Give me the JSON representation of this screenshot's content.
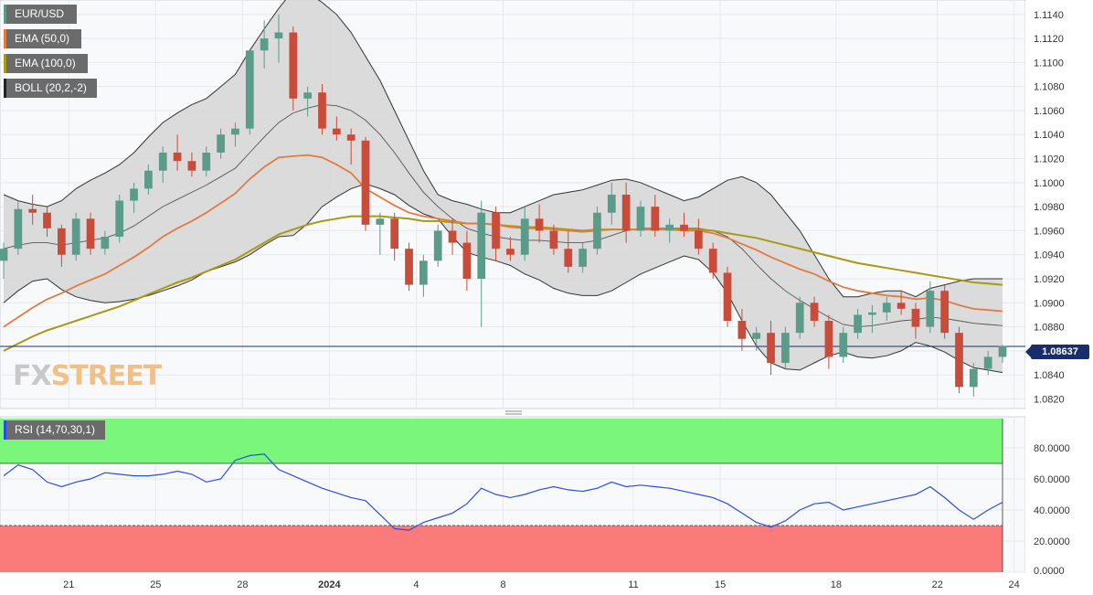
{
  "legend": {
    "symbol": "EUR/USD",
    "ema50": "EMA (50,0)",
    "ema100": "EMA (100,0)",
    "boll": "BOLL (20,2,-2)",
    "rsi": "RSI (14,70,30,1)"
  },
  "colors": {
    "up": "#5b9b8a",
    "down": "#c94b3a",
    "ema50": "#e47a3d",
    "ema100": "#a99a13",
    "boll": "#333333",
    "bollFill": "#d6d6d6",
    "rsiLine": "#2a4fe0",
    "overbought": "#7af77a",
    "oversold": "#fb7b7b",
    "priceLine": "#1a2d6b"
  },
  "watermark": {
    "part1": "FX",
    "part2": "STREET"
  },
  "current_price": "1.08637",
  "chart_data": {
    "type": "candlestick",
    "x_ticks": [
      "21",
      "25",
      "28",
      "2024",
      "4",
      "8",
      "11",
      "15",
      "18",
      "22",
      "24"
    ],
    "y_ticks": [
      "1.1140",
      "1.1120",
      "1.1100",
      "1.1080",
      "1.1060",
      "1.1040",
      "1.1020",
      "1.1000",
      "1.0980",
      "1.0960",
      "1.0940",
      "1.0920",
      "1.0900",
      "1.0880",
      "1.0860",
      "1.0840",
      "1.0820"
    ],
    "ylim": [
      1.0812,
      1.1152
    ],
    "ohlc": [
      [
        1.0935,
        1.095,
        1.092,
        1.0945
      ],
      [
        1.0945,
        1.0985,
        1.094,
        1.0978
      ],
      [
        1.0978,
        1.099,
        1.0965,
        1.0975
      ],
      [
        1.0975,
        1.098,
        1.0955,
        1.0962
      ],
      [
        1.0962,
        1.0965,
        1.093,
        1.094
      ],
      [
        1.094,
        1.0975,
        1.0935,
        1.097
      ],
      [
        1.097,
        1.0975,
        1.094,
        1.0945
      ],
      [
        1.0945,
        1.096,
        1.094,
        1.0955
      ],
      [
        1.0955,
        1.099,
        1.095,
        1.0985
      ],
      [
        1.0985,
        1.1,
        1.0975,
        1.0995
      ],
      [
        1.0995,
        1.1015,
        1.099,
        1.101
      ],
      [
        1.101,
        1.103,
        1.1,
        1.1025
      ],
      [
        1.1025,
        1.104,
        1.101,
        1.1018
      ],
      [
        1.1018,
        1.1025,
        1.1005,
        1.101
      ],
      [
        1.101,
        1.103,
        1.1005,
        1.1025
      ],
      [
        1.1025,
        1.1045,
        1.102,
        1.104
      ],
      [
        1.104,
        1.105,
        1.103,
        1.1045
      ],
      [
        1.1045,
        1.111,
        1.104,
        1.111
      ],
      [
        1.111,
        1.1135,
        1.1095,
        1.112
      ],
      [
        1.112,
        1.114,
        1.11,
        1.1125
      ],
      [
        1.1125,
        1.113,
        1.106,
        1.107
      ],
      [
        1.107,
        1.108,
        1.1055,
        1.1075
      ],
      [
        1.1075,
        1.1082,
        1.104,
        1.1045
      ],
      [
        1.1045,
        1.1055,
        1.1035,
        1.104
      ],
      [
        1.104,
        1.1045,
        1.1015,
        1.1035
      ],
      [
        1.1035,
        1.1038,
        1.096,
        1.0965
      ],
      [
        1.0965,
        1.0975,
        1.094,
        1.097
      ],
      [
        1.097,
        1.0975,
        1.0935,
        1.0945
      ],
      [
        1.0945,
        1.095,
        1.091,
        1.0915
      ],
      [
        1.0915,
        1.094,
        1.0905,
        1.0935
      ],
      [
        1.0935,
        1.0965,
        1.093,
        1.096
      ],
      [
        1.096,
        1.097,
        1.094,
        1.095
      ],
      [
        1.095,
        1.096,
        1.091,
        1.092
      ],
      [
        1.092,
        1.0985,
        1.088,
        1.0975
      ],
      [
        1.0975,
        1.098,
        1.0935,
        1.0945
      ],
      [
        1.0945,
        1.0955,
        1.0935,
        1.094
      ],
      [
        1.094,
        1.098,
        1.0935,
        1.097
      ],
      [
        1.097,
        1.0982,
        1.095,
        1.096
      ],
      [
        1.096,
        1.0965,
        1.094,
        1.0945
      ],
      [
        1.0945,
        1.096,
        1.0925,
        1.093
      ],
      [
        1.093,
        1.095,
        1.0925,
        1.0945
      ],
      [
        1.0945,
        1.098,
        1.094,
        1.0975
      ],
      [
        1.0975,
        1.1,
        1.0965,
        1.099
      ],
      [
        1.099,
        1.1,
        1.095,
        1.096
      ],
      [
        1.096,
        1.0985,
        1.0955,
        1.098
      ],
      [
        1.098,
        1.099,
        1.0955,
        1.096
      ],
      [
        1.096,
        1.097,
        1.095,
        1.0965
      ],
      [
        1.0965,
        1.0975,
        1.0955,
        1.096
      ],
      [
        1.096,
        1.097,
        1.094,
        1.0945
      ],
      [
        1.0945,
        1.095,
        1.092,
        1.0925
      ],
      [
        1.0925,
        1.093,
        1.088,
        1.0885
      ],
      [
        1.0885,
        1.0895,
        1.086,
        1.087
      ],
      [
        1.087,
        1.088,
        1.086,
        1.0875
      ],
      [
        1.0875,
        1.0885,
        1.084,
        1.085
      ],
      [
        1.085,
        1.088,
        1.0845,
        1.0875
      ],
      [
        1.0875,
        1.0905,
        1.087,
        1.09
      ],
      [
        1.09,
        1.0905,
        1.088,
        1.0885
      ],
      [
        1.0885,
        1.089,
        1.0845,
        1.0855
      ],
      [
        1.0855,
        1.088,
        1.085,
        1.0875
      ],
      [
        1.0875,
        1.0895,
        1.087,
        1.089
      ],
      [
        1.089,
        1.0898,
        1.0875,
        1.0892
      ],
      [
        1.0892,
        1.0905,
        1.0885,
        1.09
      ],
      [
        1.09,
        1.091,
        1.089,
        1.0895
      ],
      [
        1.0895,
        1.09,
        1.087,
        1.088
      ],
      [
        1.088,
        1.0918,
        1.0875,
        1.091
      ],
      [
        1.091,
        1.0915,
        1.087,
        1.0875
      ],
      [
        1.0875,
        1.088,
        1.0825,
        1.083
      ],
      [
        1.083,
        1.085,
        1.0822,
        1.0845
      ],
      [
        1.0845,
        1.086,
        1.084,
        1.0855
      ],
      [
        1.0855,
        1.0865,
        1.085,
        1.0864
      ]
    ],
    "ema50": [
      1.088,
      1.0888,
      1.0896,
      1.0903,
      1.0908,
      1.0914,
      1.0919,
      1.0924,
      1.0931,
      1.0938,
      1.0946,
      1.0955,
      1.0962,
      1.0968,
      1.0975,
      1.0983,
      1.0991,
      1.1003,
      1.1013,
      1.1021,
      1.1022,
      1.1023,
      1.1021,
      1.1015,
      1.1008,
      1.0995,
      1.0988,
      1.0981,
      1.0975,
      1.0972,
      1.097,
      1.0968,
      1.0966,
      1.0966,
      1.0965,
      1.0963,
      1.0962,
      1.0962,
      1.0961,
      1.096,
      1.0959,
      1.096,
      1.0961,
      1.0961,
      1.0961,
      1.0961,
      1.0961,
      1.096,
      1.096,
      1.0958,
      1.0954,
      1.0949,
      1.0944,
      1.0938,
      1.0933,
      1.0928,
      1.0924,
      1.0918,
      1.0913,
      1.091,
      1.0908,
      1.0906,
      1.0905,
      1.0903,
      1.0904,
      1.0902,
      1.0898,
      1.0895,
      1.0894,
      1.0893
    ],
    "ema100": [
      1.086,
      1.0866,
      1.0872,
      1.0877,
      1.0881,
      1.0885,
      1.0889,
      1.0893,
      1.0897,
      1.0902,
      1.0907,
      1.0912,
      1.0917,
      1.0921,
      1.0926,
      1.0931,
      1.0936,
      1.0943,
      1.095,
      1.0957,
      1.0961,
      1.0965,
      1.0968,
      1.097,
      1.0972,
      1.0972,
      1.0972,
      1.0971,
      1.097,
      1.0968,
      1.0968,
      1.0967,
      1.0966,
      1.0966,
      1.0965,
      1.0964,
      1.0963,
      1.0963,
      1.0962,
      1.0961,
      1.096,
      1.0961,
      1.0961,
      1.0961,
      1.0961,
      1.0961,
      1.0961,
      1.0961,
      1.0961,
      1.096,
      1.0958,
      1.0956,
      1.0954,
      1.0951,
      1.0948,
      1.0945,
      1.0942,
      1.0939,
      1.0936,
      1.0933,
      1.0931,
      1.0929,
      1.0927,
      1.0925,
      1.0923,
      1.0921,
      1.0919,
      1.0917,
      1.0916,
      1.0915
    ],
    "boll_upper": [
      1.099,
      1.0985,
      1.0982,
      1.098,
      1.0985,
      1.0995,
      1.1002,
      1.1008,
      1.1015,
      1.1025,
      1.1038,
      1.105,
      1.1058,
      1.1065,
      1.107,
      1.108,
      1.109,
      1.111,
      1.1128,
      1.1145,
      1.116,
      1.1158,
      1.115,
      1.114,
      1.1125,
      1.1105,
      1.1085,
      1.106,
      1.1035,
      1.101,
      1.099,
      1.0985,
      1.0982,
      1.0978,
      1.0975,
      1.0975,
      1.098,
      1.0985,
      1.099,
      1.0992,
      1.0994,
      1.0998,
      1.1002,
      1.1003,
      1.1,
      1.0995,
      1.099,
      1.0985,
      1.0988,
      1.0995,
      1.1002,
      1.1005,
      1.1,
      1.099,
      1.0975,
      1.096,
      1.094,
      1.092,
      1.0905,
      1.0905,
      1.0908,
      1.091,
      1.091,
      1.0905,
      1.0912,
      1.0915,
      1.0918,
      1.092,
      1.092,
      1.092
    ],
    "boll_mid": [
      1.0945,
      1.0948,
      1.095,
      1.095,
      1.0948,
      1.095,
      1.0952,
      1.0954,
      1.0958,
      1.0964,
      1.0972,
      1.098,
      1.0986,
      1.0992,
      1.0998,
      1.1005,
      1.1012,
      1.1025,
      1.1038,
      1.105,
      1.1058,
      1.1062,
      1.1065,
      1.1064,
      1.106,
      1.1052,
      1.104,
      1.1025,
      1.1008,
      1.0992,
      1.098,
      1.097,
      1.0962,
      1.0958,
      1.0955,
      1.0953,
      1.0952,
      1.0952,
      1.0951,
      1.095,
      1.095,
      1.0952,
      1.0956,
      1.096,
      1.0962,
      1.0962,
      1.0962,
      1.0962,
      1.0962,
      1.096,
      1.0955,
      1.0945,
      1.0932,
      1.092,
      1.091,
      1.0902,
      1.0895,
      1.0888,
      1.0882,
      1.088,
      1.0881,
      1.0883,
      1.0885,
      1.0886,
      1.0888,
      1.0887,
      1.0885,
      1.0883,
      1.0882,
      1.0881
    ],
    "boll_lower": [
      1.09,
      1.091,
      1.0918,
      1.092,
      1.0911,
      1.0905,
      1.0902,
      1.09,
      1.0901,
      1.0903,
      1.0906,
      1.091,
      1.0914,
      1.0919,
      1.0926,
      1.093,
      1.0934,
      1.094,
      1.0948,
      1.0955,
      1.0956,
      1.0966,
      1.098,
      1.0988,
      1.0995,
      1.0999,
      1.0995,
      1.099,
      1.0981,
      1.0974,
      1.097,
      1.0955,
      1.0942,
      1.0938,
      1.0935,
      1.0931,
      1.0924,
      1.0919,
      1.0912,
      1.0908,
      1.0906,
      1.0906,
      1.091,
      1.0917,
      1.0924,
      1.0929,
      1.0934,
      1.0939,
      1.0936,
      1.0925,
      1.0908,
      1.0885,
      1.0864,
      1.085,
      1.0845,
      1.0844,
      1.085,
      1.0856,
      1.0859,
      1.0855,
      1.0854,
      1.0856,
      1.086,
      1.0867,
      1.0864,
      1.0859,
      1.0852,
      1.0846,
      1.0844,
      1.0842
    ],
    "rsi_y_ticks": [
      "80.0000",
      "60.0000",
      "40.0000",
      "20.0000",
      "0.0000"
    ],
    "rsi_ylim": [
      0,
      100
    ],
    "rsi_overbought": 70,
    "rsi_oversold": 30,
    "rsi": [
      62,
      69,
      66,
      58,
      55,
      58,
      60,
      64,
      63,
      62,
      62,
      63,
      65,
      63,
      58,
      60,
      72,
      75,
      76,
      66,
      62,
      58,
      54,
      51,
      48,
      46,
      37,
      28,
      27,
      32,
      35,
      38,
      44,
      54,
      50,
      48,
      50,
      53,
      55,
      53,
      52,
      54,
      58,
      55,
      56,
      55,
      54,
      52,
      50,
      48,
      44,
      38,
      32,
      29,
      33,
      40,
      44,
      45,
      40,
      42,
      44,
      46,
      48,
      50,
      55,
      48,
      40,
      34,
      40,
      45
    ]
  }
}
